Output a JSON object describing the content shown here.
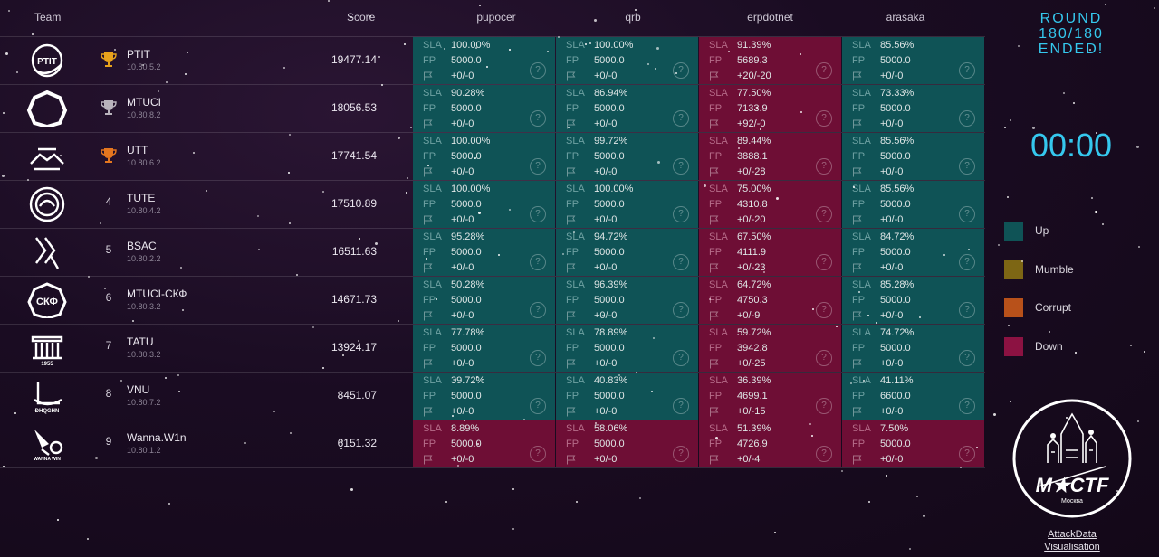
{
  "header": {
    "team_label": "Team",
    "score_label": "Score",
    "services": [
      "pupocer",
      "qrb",
      "erpdotnet",
      "arasaka"
    ]
  },
  "teams": [
    {
      "rank": "1",
      "trophy": "gold",
      "name": "PTIT",
      "ip": "10.80.5.2",
      "score": "19477.14",
      "logo": "ptit-logo",
      "services": [
        {
          "status": "up",
          "sla": "100.00%",
          "fp": "5000.0",
          "flags": "+0/-0"
        },
        {
          "status": "up",
          "sla": "100.00%",
          "fp": "5000.0",
          "flags": "+0/-0"
        },
        {
          "status": "down",
          "sla": "91.39%",
          "fp": "5689.3",
          "flags": "+20/-20"
        },
        {
          "status": "up",
          "sla": "85.56%",
          "fp": "5000.0",
          "flags": "+0/-0"
        }
      ]
    },
    {
      "rank": "2",
      "trophy": "silver",
      "name": "MTUCI",
      "ip": "10.80.8.2",
      "score": "18056.53",
      "logo": "mtuci-logo",
      "services": [
        {
          "status": "up",
          "sla": "90.28%",
          "fp": "5000.0",
          "flags": "+0/-0"
        },
        {
          "status": "up",
          "sla": "86.94%",
          "fp": "5000.0",
          "flags": "+0/-0"
        },
        {
          "status": "down",
          "sla": "77.50%",
          "fp": "7133.9",
          "flags": "+92/-0"
        },
        {
          "status": "up",
          "sla": "73.33%",
          "fp": "5000.0",
          "flags": "+0/-0"
        }
      ]
    },
    {
      "rank": "3",
      "trophy": "bronze",
      "name": "UTT",
      "ip": "10.80.6.2",
      "score": "17741.54",
      "logo": "utt-logo",
      "services": [
        {
          "status": "up",
          "sla": "100.00%",
          "fp": "5000.0",
          "flags": "+0/-0"
        },
        {
          "status": "up",
          "sla": "99.72%",
          "fp": "5000.0",
          "flags": "+0/-0"
        },
        {
          "status": "down",
          "sla": "89.44%",
          "fp": "3888.1",
          "flags": "+0/-28"
        },
        {
          "status": "up",
          "sla": "85.56%",
          "fp": "5000.0",
          "flags": "+0/-0"
        }
      ]
    },
    {
      "rank": "4",
      "trophy": "",
      "name": "TUTE",
      "ip": "10.80.4.2",
      "score": "17510.89",
      "logo": "tute-logo",
      "services": [
        {
          "status": "up",
          "sla": "100.00%",
          "fp": "5000.0",
          "flags": "+0/-0"
        },
        {
          "status": "up",
          "sla": "100.00%",
          "fp": "5000.0",
          "flags": "+0/-0"
        },
        {
          "status": "down",
          "sla": "75.00%",
          "fp": "4310.8",
          "flags": "+0/-20"
        },
        {
          "status": "up",
          "sla": "85.56%",
          "fp": "5000.0",
          "flags": "+0/-0"
        }
      ]
    },
    {
      "rank": "5",
      "trophy": "",
      "name": "BSAC",
      "ip": "10.80.2.2",
      "score": "16511.63",
      "logo": "bsac-logo",
      "services": [
        {
          "status": "up",
          "sla": "95.28%",
          "fp": "5000.0",
          "flags": "+0/-0"
        },
        {
          "status": "up",
          "sla": "94.72%",
          "fp": "5000.0",
          "flags": "+0/-0"
        },
        {
          "status": "down",
          "sla": "67.50%",
          "fp": "4111.9",
          "flags": "+0/-23"
        },
        {
          "status": "up",
          "sla": "84.72%",
          "fp": "5000.0",
          "flags": "+0/-0"
        }
      ]
    },
    {
      "rank": "6",
      "trophy": "",
      "name": "MTUCI-СКФ",
      "ip": "10.80.3.2",
      "score": "14671.73",
      "logo": "skf-logo",
      "logo_text": "СКФ",
      "services": [
        {
          "status": "up",
          "sla": "50.28%",
          "fp": "5000.0",
          "flags": "+0/-0"
        },
        {
          "status": "up",
          "sla": "96.39%",
          "fp": "5000.0",
          "flags": "+0/-0"
        },
        {
          "status": "down",
          "sla": "64.72%",
          "fp": "4750.3",
          "flags": "+0/-9"
        },
        {
          "status": "up",
          "sla": "85.28%",
          "fp": "5000.0",
          "flags": "+0/-0"
        }
      ]
    },
    {
      "rank": "7",
      "trophy": "",
      "name": "TATU",
      "ip": "10.80.3.2",
      "score": "13924.17",
      "logo": "tatu-logo",
      "logo_text": "1955",
      "services": [
        {
          "status": "up",
          "sla": "77.78%",
          "fp": "5000.0",
          "flags": "+0/-0"
        },
        {
          "status": "up",
          "sla": "78.89%",
          "fp": "5000.0",
          "flags": "+0/-0"
        },
        {
          "status": "down",
          "sla": "59.72%",
          "fp": "3942.8",
          "flags": "+0/-25"
        },
        {
          "status": "up",
          "sla": "74.72%",
          "fp": "5000.0",
          "flags": "+0/-0"
        }
      ]
    },
    {
      "rank": "8",
      "trophy": "",
      "name": "VNU",
      "ip": "10.80.7.2",
      "score": "8451.07",
      "logo": "vnu-logo",
      "logo_text": "ĐHQGHN",
      "services": [
        {
          "status": "up",
          "sla": "39.72%",
          "fp": "5000.0",
          "flags": "+0/-0"
        },
        {
          "status": "up",
          "sla": "40.83%",
          "fp": "5000.0",
          "flags": "+0/-0"
        },
        {
          "status": "down",
          "sla": "36.39%",
          "fp": "4699.1",
          "flags": "+0/-15"
        },
        {
          "status": "up",
          "sla": "41.11%",
          "fp": "6600.0",
          "flags": "+0/-0"
        }
      ]
    },
    {
      "rank": "9",
      "trophy": "",
      "name": "Wanna.W1n",
      "ip": "10.80.1.2",
      "score": "6151.32",
      "logo": "wannawin-logo",
      "logo_text": "WANNA WIN",
      "services": [
        {
          "status": "down",
          "sla": "8.89%",
          "fp": "5000.0",
          "flags": "+0/-0"
        },
        {
          "status": "down",
          "sla": "58.06%",
          "fp": "5000.0",
          "flags": "+0/-0"
        },
        {
          "status": "down",
          "sla": "51.39%",
          "fp": "4726.9",
          "flags": "+0/-4"
        },
        {
          "status": "down",
          "sla": "7.50%",
          "fp": "5000.0",
          "flags": "+0/-0"
        }
      ]
    }
  ],
  "cell_labels": {
    "sla": "SLA",
    "fp": "FP",
    "help": "?",
    "flag_icon": "flag-icon"
  },
  "panel": {
    "round_line1": "ROUND",
    "round_line2": "180/180",
    "round_line3": "ENDED!",
    "timer": "00:00",
    "legend": [
      {
        "label": "Up",
        "color": "#0f5356"
      },
      {
        "label": "Mumble",
        "color": "#7d6614"
      },
      {
        "label": "Corrupt",
        "color": "#b8511a"
      },
      {
        "label": "Down",
        "color": "#8c1242"
      }
    ],
    "emblem_text": "M★CTF",
    "emblem_subtext": "Москва",
    "attack_link_line1": "AttackData",
    "attack_link_line2": "Visualisation"
  },
  "colors": {
    "accent": "#35c8ee",
    "up": "#0f5356",
    "down": "#6e0e35",
    "gold": "#e8a21c",
    "silver": "#b9b3bc",
    "bronze": "#e4761f"
  }
}
